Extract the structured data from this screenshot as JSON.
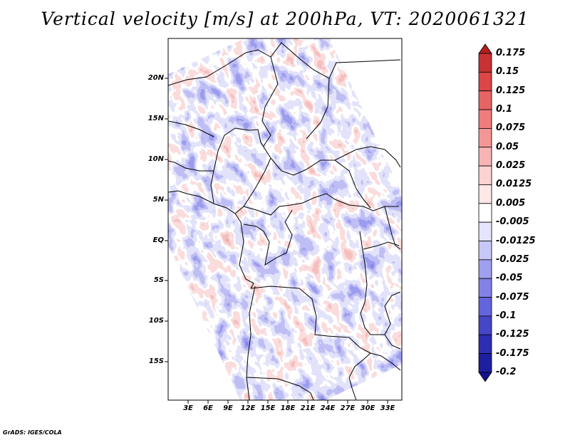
{
  "title": "Vertical velocity [m/s] at 200hPa, VT: 2020061321",
  "credit": "GrADS: IGES/COLA",
  "map": {
    "lat_labels": [
      "20N",
      "15N",
      "10N",
      "5N",
      "EQ",
      "5S",
      "10S",
      "15S"
    ],
    "lon_labels": [
      "3E",
      "6E",
      "9E",
      "12E",
      "15E",
      "18E",
      "21E",
      "24E",
      "27E",
      "30E",
      "33E"
    ],
    "field": "vertical velocity at 200hPa"
  },
  "colorbar": {
    "labels": [
      "0.175",
      "0.15",
      "0.125",
      "0.1",
      "0.075",
      "0.05",
      "0.025",
      "0.0125",
      "0.005",
      "-0.005",
      "-0.0125",
      "-0.025",
      "-0.05",
      "-0.075",
      "-0.1",
      "-0.125",
      "-0.175",
      "-0.2"
    ],
    "colors": [
      "#b41e1e",
      "#c83232",
      "#dc4646",
      "#e66464",
      "#f07c7c",
      "#f49696",
      "#f8b4b4",
      "#fcd2d2",
      "#fee8e8",
      "#ffffff",
      "#e4e4fc",
      "#c8c8f8",
      "#a0a0f0",
      "#8282e6",
      "#6464dc",
      "#4646c8",
      "#2e2eb4",
      "#1e1ea0",
      "#14148c"
    ]
  }
}
